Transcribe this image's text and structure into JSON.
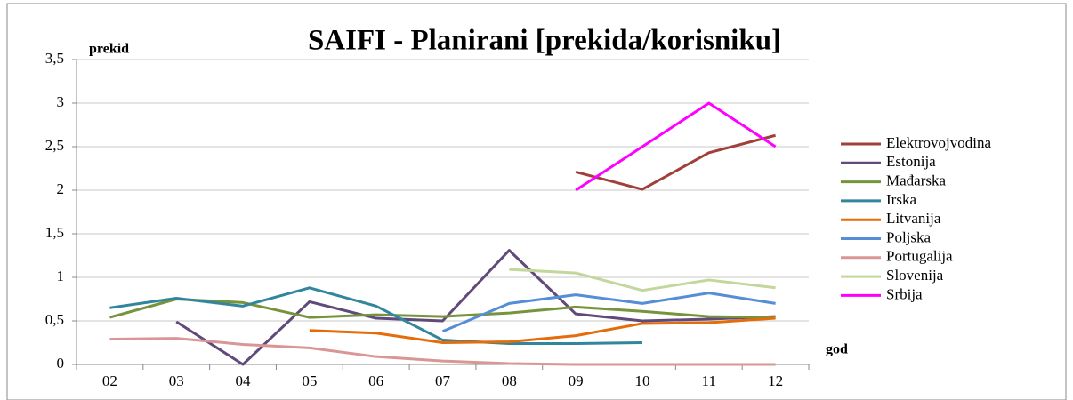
{
  "chart_data": {
    "type": "line",
    "title": "SAIFI - Planirani [prekida/korisniku]",
    "y_label": "prekid",
    "x_label": "god",
    "categories": [
      "02",
      "03",
      "04",
      "05",
      "06",
      "07",
      "08",
      "09",
      "10",
      "11",
      "12"
    ],
    "ylim": [
      0,
      3.5
    ],
    "yticks": [
      0,
      {
        "value": 0.5,
        "label": "0,5"
      },
      1,
      {
        "value": 1.5,
        "label": "1,5"
      },
      2,
      {
        "value": 2.5,
        "label": "2,5"
      },
      3,
      {
        "value": 3.5,
        "label": "3,5"
      }
    ],
    "grid": true,
    "legend": "right",
    "series": [
      {
        "name": "Elektrovojvodina",
        "color": "#a0403b",
        "values": [
          null,
          null,
          null,
          null,
          null,
          null,
          null,
          2.21,
          2.01,
          2.43,
          2.63
        ]
      },
      {
        "name": "Estonija",
        "color": "#604a7b",
        "values": [
          null,
          0.49,
          0,
          0.72,
          0.53,
          0.5,
          1.31,
          0.58,
          0.5,
          0.52,
          0.55
        ]
      },
      {
        "name": "Mađarska",
        "color": "#77933c",
        "values": [
          0.54,
          0.75,
          0.71,
          0.54,
          0.57,
          0.55,
          0.59,
          0.66,
          0.61,
          0.55,
          0.54
        ]
      },
      {
        "name": "Irska",
        "color": "#31859c",
        "values": [
          0.65,
          0.76,
          0.67,
          0.88,
          0.67,
          0.28,
          0.24,
          0.24,
          0.25,
          null,
          null
        ]
      },
      {
        "name": "Litvanija",
        "color": "#e46c0a",
        "values": [
          null,
          null,
          null,
          0.39,
          0.36,
          0.25,
          0.26,
          0.33,
          0.47,
          0.48,
          0.53
        ]
      },
      {
        "name": "Poljska",
        "color": "#558ed5",
        "values": [
          null,
          null,
          null,
          null,
          null,
          0.38,
          0.7,
          0.8,
          0.7,
          0.82,
          0.7
        ]
      },
      {
        "name": "Portugalija",
        "color": "#d99694",
        "values": [
          0.29,
          0.3,
          0.23,
          0.19,
          0.09,
          0.04,
          0.01,
          0,
          0,
          0,
          0
        ]
      },
      {
        "name": "Slovenija",
        "color": "#c3d69b",
        "values": [
          null,
          null,
          null,
          null,
          null,
          null,
          1.09,
          1.05,
          0.85,
          0.97,
          0.88
        ]
      },
      {
        "name": "Srbija",
        "color": "#ff00ff",
        "values": [
          null,
          null,
          null,
          null,
          null,
          null,
          null,
          2.0,
          2.5,
          3.0,
          2.5
        ]
      }
    ]
  }
}
